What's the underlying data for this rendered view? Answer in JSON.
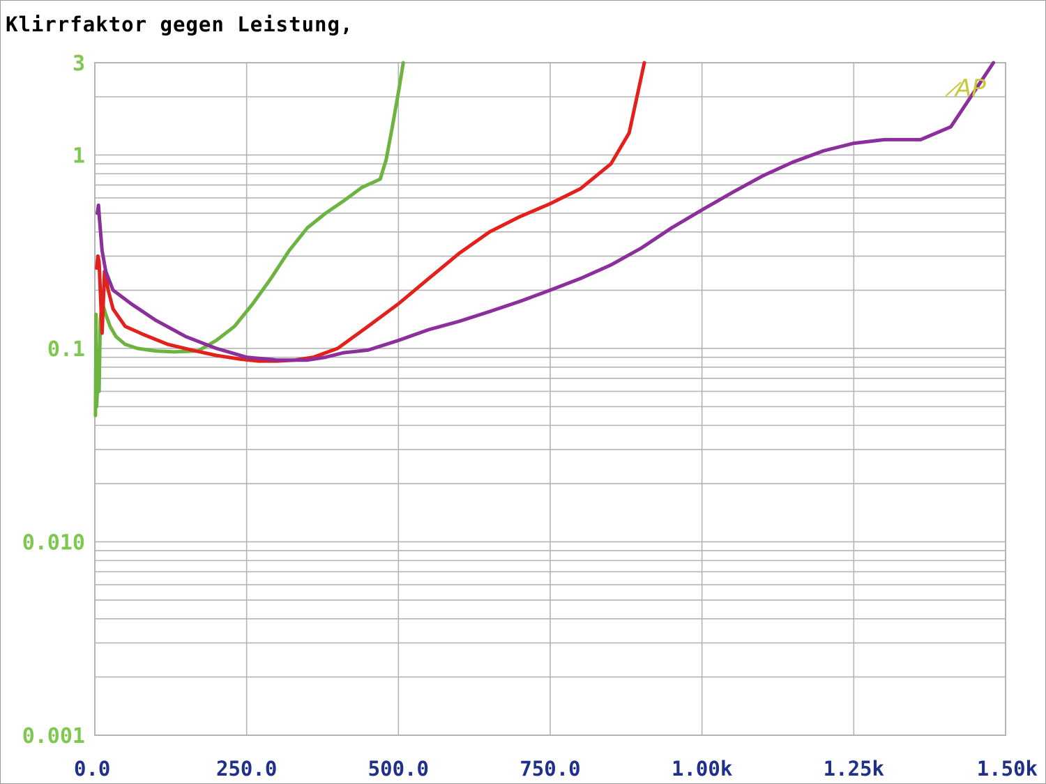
{
  "chart_data": {
    "type": "line",
    "title": "Klirrfaktor gegen Leistung,",
    "xlabel": "",
    "ylabel": "",
    "xlim": [
      0,
      1500
    ],
    "ylim": [
      0.001,
      3
    ],
    "yscale": "log",
    "grid": true,
    "x_tick_labels": [
      "0.0",
      "250.0",
      "500.0",
      "750.0",
      "1.00k",
      "1.25k",
      "1.50k"
    ],
    "y_tick_labels": [
      "3",
      "1",
      "0.1",
      "0.010",
      "0.001"
    ],
    "logo_text": "AP",
    "colors": {
      "green": "#6db33f",
      "red": "#e4201c",
      "purple": "#8b2f9b",
      "x_tick": "#1f2f8a",
      "y_tick": "#7ec850",
      "grid": "#b4b4b4",
      "logo": "#c8c83a"
    },
    "series": [
      {
        "color": "green",
        "x": [
          1,
          2,
          3,
          5,
          7,
          9,
          11,
          14,
          18,
          25,
          35,
          50,
          70,
          100,
          130,
          170,
          200,
          230,
          260,
          290,
          320,
          350,
          380,
          410,
          440,
          470,
          480,
          490,
          500,
          508
        ],
        "y": [
          0.045,
          0.15,
          0.05,
          0.07,
          0.06,
          0.14,
          0.16,
          0.165,
          0.15,
          0.13,
          0.115,
          0.105,
          0.1,
          0.097,
          0.096,
          0.097,
          0.11,
          0.13,
          0.17,
          0.23,
          0.32,
          0.42,
          0.5,
          0.58,
          0.68,
          0.75,
          0.95,
          1.4,
          2.1,
          3
        ]
      },
      {
        "color": "red",
        "x": [
          3,
          5,
          7,
          9,
          12,
          16,
          22,
          30,
          50,
          80,
          120,
          160,
          200,
          240,
          270,
          300,
          330,
          360,
          400,
          450,
          500,
          550,
          600,
          650,
          700,
          750,
          800,
          850,
          880,
          905
        ],
        "y": [
          0.26,
          0.3,
          0.28,
          0.2,
          0.12,
          0.25,
          0.2,
          0.16,
          0.13,
          0.118,
          0.105,
          0.098,
          0.092,
          0.088,
          0.086,
          0.086,
          0.087,
          0.09,
          0.1,
          0.13,
          0.17,
          0.23,
          0.31,
          0.4,
          0.48,
          0.56,
          0.67,
          0.9,
          1.3,
          3
        ]
      },
      {
        "color": "purple",
        "x": [
          4,
          6,
          8,
          12,
          18,
          30,
          60,
          100,
          150,
          200,
          250,
          300,
          350,
          380,
          410,
          450,
          500,
          550,
          600,
          650,
          700,
          750,
          800,
          850,
          900,
          950,
          1000,
          1050,
          1100,
          1150,
          1200,
          1250,
          1300,
          1360,
          1410,
          1480
        ],
        "y": [
          0.5,
          0.55,
          0.45,
          0.32,
          0.25,
          0.2,
          0.17,
          0.14,
          0.115,
          0.1,
          0.09,
          0.087,
          0.087,
          0.09,
          0.095,
          0.098,
          0.11,
          0.125,
          0.138,
          0.155,
          0.175,
          0.2,
          0.23,
          0.27,
          0.33,
          0.42,
          0.52,
          0.64,
          0.78,
          0.92,
          1.05,
          1.15,
          1.2,
          1.2,
          1.4,
          3
        ]
      }
    ]
  }
}
